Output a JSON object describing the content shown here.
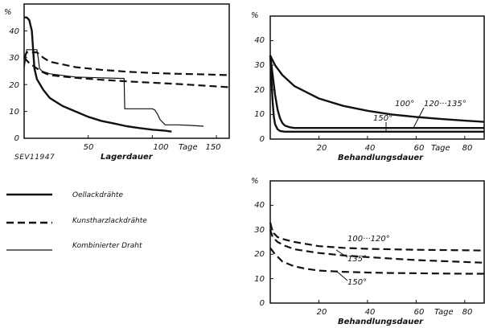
{
  "source_code": "SEV11947",
  "legend": [
    {
      "label": "Oellackdrähte",
      "style": "solid-thick"
    },
    {
      "label": "Kunstharzlackdrähte",
      "style": "dashed-thick"
    },
    {
      "label": "Kombinierter Draht",
      "style": "solid-thin"
    }
  ],
  "chart_data": [
    {
      "type": "line",
      "xlabel": "Lagerdauer",
      "ylabel": "%",
      "x_unit_label": "Tage",
      "xlim": [
        0,
        160
      ],
      "ylim": [
        0,
        50
      ],
      "xticks": [
        50,
        100,
        150
      ],
      "yticks": [
        0,
        10,
        20,
        30,
        40
      ],
      "grid": false,
      "series": [
        {
          "style": "solid-thick",
          "x": [
            0,
            2,
            4,
            6,
            7,
            8,
            10,
            15,
            20,
            30,
            40,
            50,
            60,
            70,
            80,
            90,
            100,
            110,
            115
          ],
          "y": [
            45,
            45,
            44,
            40,
            33,
            26,
            22,
            18,
            15,
            12,
            10,
            8,
            6.5,
            5.5,
            4.5,
            3.8,
            3.2,
            2.8,
            2.5
          ]
        },
        {
          "style": "dashed-thick",
          "x": [
            0,
            2,
            10,
            15,
            20,
            40,
            60,
            80,
            100,
            120,
            140,
            160
          ],
          "y": [
            30,
            32,
            32,
            30,
            28.5,
            26.5,
            25.5,
            24.8,
            24.3,
            24,
            23.8,
            23.5
          ]
        },
        {
          "style": "dashed-thick",
          "x": [
            0,
            4,
            10,
            15,
            20,
            40,
            60,
            80,
            100,
            120,
            140,
            160
          ],
          "y": [
            30,
            28,
            26,
            24.5,
            23.5,
            22.5,
            21.8,
            21.2,
            20.7,
            20.2,
            19.6,
            19
          ]
        },
        {
          "style": "solid-thin",
          "x": [
            0,
            2,
            10,
            11,
            12,
            14,
            20,
            40,
            60,
            75,
            78,
            78.5,
            80,
            90,
            100,
            102,
            104,
            106,
            108,
            110,
            120,
            130,
            140
          ],
          "y": [
            26,
            33,
            33,
            30,
            26,
            25,
            24,
            22.8,
            22.5,
            22.3,
            22.3,
            11,
            11,
            11,
            11,
            10.5,
            9,
            7,
            6,
            5,
            5,
            4.8,
            4.5
          ]
        }
      ],
      "annotations": []
    },
    {
      "type": "line",
      "xlabel": "Behandlungsdauer",
      "ylabel": "%",
      "x_unit_label": "Tage",
      "xlim": [
        0,
        88
      ],
      "ylim": [
        0,
        50
      ],
      "xticks": [
        20,
        40,
        60,
        80
      ],
      "yticks": [
        0,
        10,
        20,
        30,
        40
      ],
      "grid": false,
      "series": [
        {
          "style": "solid-thick",
          "label": "100°",
          "x": [
            0,
            2,
            5,
            10,
            20,
            30,
            40,
            50,
            60,
            70,
            80,
            88
          ],
          "y": [
            34,
            30,
            26,
            21.5,
            16.5,
            13.5,
            11.5,
            10,
            9,
            8.2,
            7.5,
            7
          ]
        },
        {
          "style": "solid-thick",
          "label": "120···135°",
          "x": [
            0,
            1,
            2,
            3,
            4,
            5,
            6,
            8,
            10,
            20,
            40,
            60,
            88
          ],
          "y": [
            34,
            26,
            18,
            12,
            8.5,
            6.5,
            5.5,
            4.8,
            4.5,
            4.5,
            4.5,
            4.5,
            4.5
          ]
        },
        {
          "style": "solid-thick",
          "label": "150°",
          "x": [
            0,
            0.5,
            1,
            1.5,
            2,
            3,
            4,
            6,
            8,
            20,
            40,
            60,
            88
          ],
          "y": [
            34,
            24,
            15,
            9,
            6,
            4,
            3.3,
            3,
            3,
            3,
            3,
            3,
            3
          ]
        }
      ],
      "annotations": [
        "100°",
        "120···135°",
        "150°"
      ]
    },
    {
      "type": "line",
      "xlabel": "Behandlungsdauer",
      "ylabel": "%",
      "x_unit_label": "Tage",
      "xlim": [
        0,
        88
      ],
      "ylim": [
        0,
        50
      ],
      "xticks": [
        20,
        40,
        60,
        80
      ],
      "yticks": [
        0,
        10,
        20,
        30,
        40
      ],
      "grid": false,
      "series": [
        {
          "style": "dashed-thick",
          "label": "100···120°",
          "x": [
            0,
            1,
            3,
            6,
            10,
            20,
            30,
            40,
            50,
            60,
            70,
            80,
            88
          ],
          "y": [
            33,
            29,
            27,
            26,
            25,
            23.3,
            22.6,
            22.2,
            22,
            21.8,
            21.7,
            21.6,
            21.5
          ]
        },
        {
          "style": "dashed-thick",
          "label": "135°",
          "x": [
            0,
            1,
            3,
            6,
            10,
            20,
            30,
            40,
            50,
            60,
            70,
            80,
            88
          ],
          "y": [
            30,
            27,
            25,
            23.5,
            22,
            20.5,
            19.5,
            18.8,
            18.2,
            17.6,
            17.2,
            16.8,
            16.5
          ]
        },
        {
          "style": "dashed-thick",
          "label": "150°",
          "x": [
            0,
            2,
            5,
            10,
            15,
            20,
            30,
            40,
            50,
            60,
            70,
            80,
            88
          ],
          "y": [
            22.5,
            20,
            17,
            15,
            14,
            13.3,
            12.8,
            12.5,
            12.3,
            12.2,
            12.1,
            12,
            12
          ]
        }
      ],
      "annotations": [
        "100···120°",
        "135°",
        "150°"
      ]
    }
  ]
}
